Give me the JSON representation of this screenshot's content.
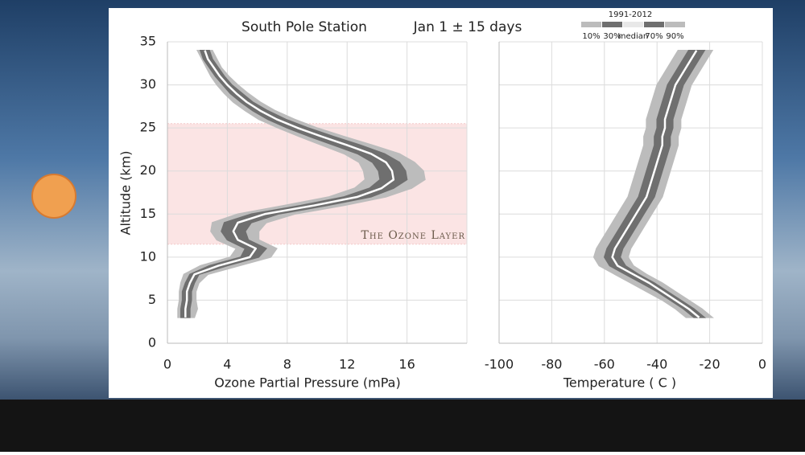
{
  "chart_data": [
    {
      "type": "profile",
      "title": "South Pole Station",
      "subtitle": "Jan 1  ± 15 days",
      "legend_title": "1991-2012",
      "xlabel": "Ozone Partial Pressure (mPa)",
      "ylabel": "Altitude (km)",
      "annotation": "The Ozone Layer",
      "shaded_region": [
        11.5,
        25.5
      ],
      "shaded_color": "#fbe4e4",
      "xlim": [
        0,
        20
      ],
      "xticks": [
        0,
        4,
        8,
        12,
        16
      ],
      "ylim": [
        0,
        35
      ],
      "yticks": [
        0,
        5,
        10,
        15,
        20,
        25,
        30,
        35
      ],
      "show_ytick_labels": true,
      "grid": true,
      "y": [
        3,
        4,
        5,
        6,
        7,
        8,
        9,
        10,
        11,
        12,
        13,
        14,
        15,
        16,
        17,
        18,
        19,
        20,
        21,
        22,
        23,
        24,
        25,
        26,
        27,
        28,
        29,
        30,
        31,
        32,
        33,
        34
      ],
      "series": [
        {
          "name": "10%",
          "color": "#bcbcbc",
          "values": [
            0.7,
            0.7,
            0.8,
            0.8,
            0.9,
            1.1,
            2.2,
            4.2,
            4.6,
            3.3,
            2.9,
            3.0,
            4.7,
            7.8,
            10.8,
            12.5,
            13.2,
            13.1,
            12.8,
            11.8,
            10.3,
            8.8,
            7.4,
            6.1,
            5.2,
            4.4,
            3.8,
            3.3,
            2.9,
            2.6,
            2.3,
            2.0
          ]
        },
        {
          "name": "30%",
          "color": "#6f6f6f",
          "values": [
            0.9,
            0.9,
            1.0,
            1.0,
            1.2,
            1.5,
            2.8,
            4.9,
            5.2,
            4.0,
            3.6,
            3.8,
            5.6,
            8.9,
            11.8,
            13.5,
            14.2,
            14.1,
            13.7,
            12.7,
            11.1,
            9.5,
            8.0,
            6.7,
            5.7,
            4.9,
            4.2,
            3.7,
            3.2,
            2.8,
            2.4,
            2.2
          ]
        },
        {
          "name": "median",
          "color": "#ffffff",
          "values": [
            1.2,
            1.2,
            1.3,
            1.3,
            1.5,
            1.8,
            3.4,
            5.5,
            5.9,
            4.7,
            4.4,
            4.7,
            6.5,
            9.8,
            12.7,
            14.3,
            15.1,
            15.0,
            14.6,
            13.6,
            12.0,
            10.3,
            8.7,
            7.3,
            6.2,
            5.3,
            4.6,
            4.0,
            3.5,
            3.1,
            2.7,
            2.5
          ]
        },
        {
          "name": "70%",
          "color": "#6f6f6f",
          "values": [
            1.5,
            1.5,
            1.6,
            1.6,
            1.8,
            2.1,
            4.0,
            6.1,
            6.6,
            5.4,
            5.2,
            5.6,
            7.4,
            10.7,
            13.6,
            15.1,
            16.0,
            15.9,
            15.5,
            14.5,
            12.9,
            11.1,
            9.4,
            7.9,
            6.7,
            5.7,
            5.0,
            4.3,
            3.8,
            3.4,
            3.0,
            2.8
          ]
        },
        {
          "name": "90%",
          "color": "#bcbcbc",
          "values": [
            1.8,
            2.0,
            1.9,
            1.9,
            2.1,
            2.7,
            4.8,
            6.9,
            7.3,
            6.1,
            6.1,
            6.6,
            8.5,
            11.8,
            14.6,
            16.3,
            17.2,
            17.1,
            16.5,
            15.5,
            13.7,
            11.8,
            10.0,
            8.5,
            7.2,
            6.2,
            5.4,
            4.7,
            4.1,
            3.6,
            3.3,
            3.0
          ]
        }
      ]
    },
    {
      "type": "profile",
      "xlabel": "Temperature ( C )",
      "xlim": [
        -100,
        0
      ],
      "xticks": [
        -100,
        -80,
        -60,
        -40,
        -20,
        0
      ],
      "ylim": [
        0,
        35
      ],
      "yticks": [
        0,
        5,
        10,
        15,
        20,
        25,
        30,
        35
      ],
      "show_ytick_labels": false,
      "grid": true,
      "y": [
        3,
        4,
        5,
        6,
        7,
        8,
        9,
        10,
        11,
        12,
        13,
        14,
        15,
        16,
        17,
        18,
        19,
        20,
        21,
        22,
        23,
        24,
        25,
        26,
        27,
        28,
        29,
        30,
        31,
        32,
        33,
        34
      ],
      "series": [
        {
          "color": "#bcbcbc",
          "values": [
            -29,
            -33,
            -38,
            -44,
            -50,
            -56,
            -62,
            -64,
            -63,
            -61,
            -59,
            -57,
            -55,
            -53,
            -51,
            -50,
            -49,
            -48,
            -47,
            -46,
            -45,
            -45,
            -44,
            -44,
            -43,
            -42,
            -41,
            -40,
            -38,
            -36,
            -34,
            -32
          ]
        },
        {
          "color": "#6f6f6f",
          "values": [
            -26,
            -30,
            -35,
            -40,
            -46,
            -52,
            -58,
            -60,
            -59,
            -57,
            -55,
            -53,
            -51,
            -49,
            -47,
            -46,
            -45,
            -44,
            -43,
            -42,
            -41,
            -41,
            -40,
            -40,
            -39,
            -38,
            -37,
            -36,
            -34,
            -32,
            -30,
            -28
          ]
        },
        {
          "color": "#ffffff",
          "values": [
            -24,
            -28,
            -33,
            -38,
            -43,
            -49,
            -55,
            -57,
            -56,
            -54,
            -52,
            -50,
            -48,
            -46,
            -44,
            -43,
            -42,
            -41,
            -40,
            -39,
            -38,
            -38,
            -37,
            -37,
            -36,
            -35,
            -34,
            -33,
            -31,
            -29,
            -27,
            -25
          ]
        },
        {
          "color": "#6f6f6f",
          "values": [
            -22,
            -26,
            -31,
            -36,
            -41,
            -47,
            -52,
            -54,
            -53,
            -51,
            -49,
            -47,
            -45,
            -43,
            -41,
            -40,
            -39,
            -38,
            -37,
            -36,
            -35,
            -35,
            -34,
            -34,
            -33,
            -32,
            -31,
            -30,
            -28,
            -26,
            -24,
            -22
          ]
        },
        {
          "color": "#bcbcbc",
          "values": [
            -19,
            -23,
            -28,
            -33,
            -38,
            -44,
            -49,
            -51,
            -50,
            -48,
            -46,
            -44,
            -42,
            -40,
            -38,
            -37,
            -36,
            -35,
            -34,
            -33,
            -32,
            -32,
            -31,
            -31,
            -30,
            -29,
            -28,
            -27,
            -25,
            -23,
            -21,
            -19
          ]
        }
      ]
    }
  ]
}
